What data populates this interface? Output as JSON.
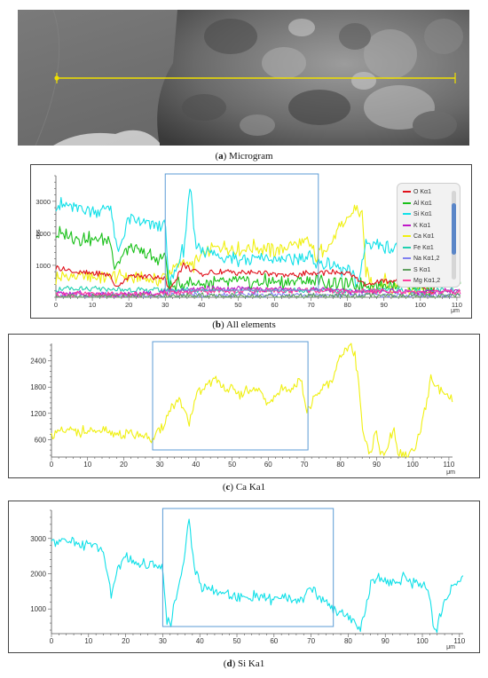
{
  "captions": {
    "a": {
      "letter": "a",
      "text": "Microgram"
    },
    "b": {
      "letter": "b",
      "text": "All elements"
    },
    "c": {
      "letter": "c",
      "text": "Ca Ka1"
    },
    "d": {
      "letter": "d",
      "text": "Si Ka1"
    }
  },
  "colors": {
    "O": "#e0101a",
    "Al": "#18c018",
    "Si": "#10e0e8",
    "K": "#c018c8",
    "Ca": "#f0f010",
    "Fe": "#20d0b0",
    "Na": "#8080f0",
    "S": "#60a060",
    "Mg": "#ff40a0",
    "box": "#5b9bd5",
    "scanline": "#f0e000"
  },
  "chart_data": [
    {
      "type": "line",
      "id": "all-elements",
      "xlabel_unit": "μm",
      "ylabel": "cps",
      "xlim": [
        0,
        111
      ],
      "ylim": [
        0,
        3800
      ],
      "xticks": [
        0,
        10,
        20,
        30,
        40,
        50,
        60,
        70,
        80,
        90,
        100,
        110
      ],
      "yticks": [
        1000,
        2000,
        3000
      ],
      "highlight_x": [
        30,
        72
      ],
      "legend": {
        "placement": "top-right",
        "entries": [
          "O Kα1",
          "Al Kα1",
          "Si Kα1",
          "K Kα1",
          "Ca Kα1",
          "Fe Kα1",
          "Na Kα1,2",
          "S Kα1",
          "Mg Kα1,2"
        ]
      },
      "series": [
        {
          "key": "Ca",
          "x": [
            0,
            5,
            10,
            15,
            20,
            25,
            28,
            30,
            35,
            37,
            40,
            45,
            50,
            55,
            60,
            65,
            70,
            71,
            75,
            80,
            82,
            84,
            85,
            88,
            90,
            92,
            95,
            97,
            100,
            103,
            105,
            108,
            111
          ],
          "values": [
            600,
            680,
            650,
            660,
            620,
            610,
            560,
            600,
            1150,
            900,
            1300,
            1600,
            1500,
            1600,
            1450,
            1650,
            1700,
            1250,
            1700,
            2450,
            2750,
            2500,
            800,
            180,
            600,
            180,
            550,
            180,
            300,
            180,
            1700,
            1400,
            1450
          ]
        },
        {
          "key": "Si",
          "x": [
            0,
            5,
            10,
            15,
            17,
            20,
            25,
            28,
            30,
            31,
            35,
            37,
            38,
            40,
            45,
            50,
            55,
            60,
            65,
            70,
            72,
            75,
            80,
            83,
            85,
            88,
            90,
            95,
            100,
            103,
            105,
            108,
            111
          ],
          "values": [
            2900,
            2800,
            2700,
            2800,
            1300,
            2400,
            2300,
            2200,
            2300,
            400,
            1500,
            3500,
            1800,
            1500,
            1300,
            1200,
            1200,
            1200,
            1200,
            1250,
            1050,
            1000,
            800,
            400,
            1700,
            1700,
            1600,
            1500,
            1300,
            350,
            1500,
            1700,
            1800
          ]
        },
        {
          "key": "Al",
          "x": [
            0,
            5,
            10,
            15,
            16,
            20,
            25,
            28,
            30,
            31,
            35,
            40,
            45,
            50,
            55,
            60,
            65,
            70,
            75,
            80,
            85,
            88,
            90,
            95,
            100,
            103,
            105,
            111
          ],
          "values": [
            2000,
            1900,
            1800,
            1800,
            900,
            1500,
            1300,
            1200,
            1300,
            300,
            450,
            450,
            450,
            500,
            480,
            480,
            500,
            500,
            450,
            400,
            400,
            380,
            400,
            450,
            350,
            150,
            700,
            650
          ]
        },
        {
          "key": "O",
          "x": [
            0,
            5,
            10,
            15,
            16,
            20,
            25,
            30,
            31,
            35,
            40,
            45,
            50,
            55,
            60,
            65,
            70,
            75,
            80,
            85,
            90,
            95,
            100,
            103,
            105,
            111
          ],
          "values": [
            950,
            800,
            750,
            700,
            300,
            650,
            650,
            600,
            200,
            1000,
            700,
            800,
            750,
            800,
            700,
            700,
            750,
            800,
            750,
            400,
            500,
            550,
            500,
            100,
            700,
            900
          ]
        },
        {
          "key": "Fe",
          "x": [
            0,
            10,
            20,
            30,
            40,
            50,
            60,
            70,
            80,
            90,
            100,
            111
          ],
          "values": [
            250,
            250,
            230,
            220,
            230,
            200,
            200,
            220,
            200,
            210,
            200,
            220
          ]
        },
        {
          "key": "Na",
          "x": [
            0,
            10,
            20,
            30,
            40,
            50,
            60,
            70,
            80,
            90,
            100,
            111
          ],
          "values": [
            60,
            70,
            60,
            70,
            70,
            80,
            70,
            90,
            70,
            60,
            60,
            60
          ]
        },
        {
          "key": "K",
          "x": [
            0,
            10,
            20,
            30,
            40,
            50,
            60,
            70,
            80,
            90,
            100,
            111
          ],
          "values": [
            100,
            110,
            90,
            150,
            260,
            280,
            250,
            260,
            200,
            180,
            170,
            200
          ]
        },
        {
          "key": "Mg",
          "x": [
            0,
            10,
            20,
            30,
            40,
            50,
            60,
            70,
            80,
            90,
            100,
            111
          ],
          "values": [
            80,
            90,
            80,
            120,
            180,
            200,
            190,
            210,
            170,
            190,
            150,
            180
          ]
        },
        {
          "key": "S",
          "x": [
            0,
            10,
            20,
            30,
            40,
            50,
            60,
            70,
            80,
            90,
            100,
            111
          ],
          "values": [
            20,
            25,
            20,
            30,
            40,
            45,
            40,
            40,
            35,
            30,
            30,
            30
          ]
        }
      ]
    },
    {
      "type": "line",
      "id": "ca-ka1",
      "xlabel_unit": "μm",
      "xlim": [
        0,
        111
      ],
      "ylim": [
        200,
        2800
      ],
      "xticks": [
        0,
        10,
        20,
        30,
        40,
        50,
        60,
        70,
        80,
        90,
        100,
        110
      ],
      "yticks": [
        600,
        1200,
        1800,
        2400
      ],
      "highlight_x": [
        28,
        71
      ],
      "series": [
        {
          "key": "Ca",
          "x": [
            0,
            2,
            5,
            8,
            10,
            15,
            20,
            25,
            28,
            30,
            33,
            35,
            37,
            38,
            40,
            43,
            45,
            48,
            50,
            52,
            55,
            58,
            60,
            63,
            65,
            67,
            69,
            70,
            71,
            73,
            75,
            78,
            80,
            82,
            83,
            84,
            85,
            86,
            88,
            90,
            91,
            92,
            94,
            95,
            96,
            97,
            98,
            100,
            102,
            104,
            105,
            107,
            109,
            111
          ],
          "values": [
            700,
            760,
            800,
            780,
            790,
            760,
            720,
            700,
            620,
            800,
            1300,
            1550,
            1200,
            900,
            1600,
            1850,
            1950,
            1800,
            1750,
            1600,
            1750,
            1650,
            1400,
            1700,
            1750,
            1800,
            1950,
            1500,
            1250,
            1550,
            1750,
            1950,
            2550,
            2650,
            2800,
            2500,
            1900,
            900,
            280,
            750,
            300,
            240,
            700,
            750,
            300,
            240,
            240,
            300,
            700,
            1500,
            2000,
            1800,
            1600,
            1450
          ]
        }
      ]
    },
    {
      "type": "line",
      "id": "si-ka1",
      "xlabel_unit": "μm",
      "xlim": [
        0,
        111
      ],
      "ylim": [
        300,
        3800
      ],
      "xticks": [
        0,
        10,
        20,
        30,
        40,
        50,
        60,
        70,
        80,
        90,
        100,
        110
      ],
      "yticks": [
        1000,
        2000,
        3000
      ],
      "highlight_x": [
        30,
        76
      ],
      "series": [
        {
          "key": "Si",
          "x": [
            0,
            2,
            4,
            6,
            8,
            10,
            12,
            14,
            15,
            16,
            17,
            18,
            20,
            22,
            25,
            28,
            30,
            31,
            32,
            33,
            35,
            36,
            37,
            38,
            39,
            40,
            42,
            45,
            48,
            50,
            53,
            55,
            58,
            60,
            63,
            65,
            68,
            70,
            72,
            75,
            78,
            80,
            82,
            83,
            84,
            85,
            86,
            88,
            90,
            92,
            95,
            98,
            100,
            102,
            103,
            104,
            105,
            107,
            109,
            111
          ],
          "values": [
            2900,
            2850,
            3000,
            2900,
            2800,
            2850,
            2800,
            2700,
            2000,
            1400,
            1800,
            2200,
            2500,
            2300,
            2300,
            2300,
            2200,
            700,
            500,
            1200,
            1800,
            2600,
            3700,
            2700,
            2000,
            1700,
            1600,
            1500,
            1400,
            1350,
            1300,
            1400,
            1250,
            1300,
            1350,
            1200,
            1300,
            1600,
            1350,
            1100,
            900,
            800,
            600,
            400,
            700,
            1200,
            1700,
            1950,
            1800,
            1700,
            1900,
            1700,
            1650,
            1500,
            550,
            400,
            900,
            1400,
            1700,
            1900
          ]
        }
      ]
    }
  ]
}
